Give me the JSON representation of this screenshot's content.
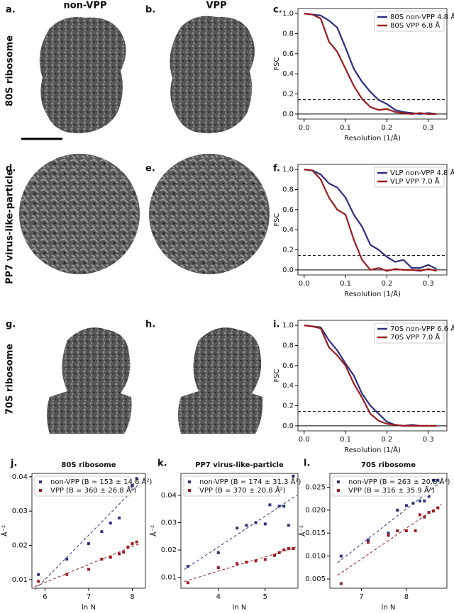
{
  "figure": {
    "panel_letters": [
      "a.",
      "b.",
      "c.",
      "d.",
      "e.",
      "f.",
      "g.",
      "h.",
      "i.",
      "j.",
      "k.",
      "l."
    ],
    "column_headers": [
      "non-VPP",
      "VPP"
    ],
    "row_labels": [
      "80S ribosome",
      "PP7 virus-like-particle",
      "70S ribosome"
    ]
  },
  "chart_data": [
    {
      "type": "line",
      "xlabel": "Resolution (1/Å)",
      "ylabel": "FSC",
      "legend": "upper right",
      "threshold": 0.143,
      "xlim": [
        -0.015,
        0.345
      ],
      "xticks": [
        {
          "value": 0,
          "label": "0.0"
        },
        0.1,
        0.2,
        0.3
      ],
      "ylim": [
        -0.05,
        1.05
      ],
      "yticks": [
        {
          "value": 0,
          "label": "0.0"
        },
        0.2,
        0.4,
        0.6,
        0.8,
        {
          "value": 1,
          "label": "1.0"
        }
      ],
      "x": [
        0,
        0.02,
        0.04,
        0.06,
        0.08,
        0.1,
        0.12,
        0.14,
        0.16,
        0.18,
        0.2,
        0.22,
        0.24,
        0.26,
        0.28,
        0.3,
        0.32
      ],
      "series": [
        {
          "name": "80S non-VPP 4.8 Å",
          "color": "#2b2f7e",
          "values": [
            1.0,
            0.99,
            0.98,
            0.93,
            0.86,
            0.66,
            0.45,
            0.32,
            0.22,
            0.14,
            0.1,
            0.04,
            0.02,
            0.01,
            0.0,
            0.01,
            0.0
          ]
        },
        {
          "name": "80S VPP 6.8 Å",
          "color": "#9b1b1e",
          "values": [
            1.0,
            0.99,
            0.95,
            0.72,
            0.62,
            0.45,
            0.28,
            0.15,
            0.07,
            0.04,
            0.05,
            0.02,
            0.01,
            0.0,
            0.01,
            0.0,
            0.0
          ]
        }
      ]
    },
    {
      "type": "line",
      "xlabel": "Resolution (1/Å)",
      "ylabel": "FSC",
      "legend": "upper right",
      "threshold": 0.143,
      "xlim": [
        -0.015,
        0.345
      ],
      "xticks": [
        {
          "value": 0,
          "label": "0.0"
        },
        0.1,
        0.2,
        0.3
      ],
      "ylim": [
        -0.05,
        1.05
      ],
      "yticks": [
        {
          "value": 0,
          "label": "0.0"
        },
        0.2,
        0.4,
        0.6,
        0.8,
        {
          "value": 1,
          "label": "1.0"
        }
      ],
      "x": [
        0,
        0.02,
        0.04,
        0.06,
        0.08,
        0.1,
        0.12,
        0.14,
        0.16,
        0.18,
        0.2,
        0.22,
        0.24,
        0.26,
        0.28,
        0.3,
        0.32
      ],
      "series": [
        {
          "name": "VLP non-VPP 4.8 Å",
          "color": "#2b2f7e",
          "values": [
            1.0,
            0.99,
            0.95,
            0.86,
            0.82,
            0.72,
            0.55,
            0.43,
            0.25,
            0.2,
            0.13,
            0.08,
            0.1,
            0.02,
            0.02,
            0.05,
            0.01
          ]
        },
        {
          "name": "VLP VPP 7.0 Å",
          "color": "#9b1b1e",
          "values": [
            1.0,
            0.99,
            0.9,
            0.72,
            0.6,
            0.55,
            0.3,
            0.1,
            0.0,
            0.02,
            -0.01,
            0.01,
            0.0,
            0.0,
            -0.01,
            0.01,
            -0.01
          ]
        }
      ]
    },
    {
      "type": "line",
      "xlabel": "Resolution (1/Å)",
      "ylabel": "FSC",
      "legend": "upper right",
      "threshold": 0.143,
      "xlim": [
        -0.015,
        0.345
      ],
      "xticks": [
        {
          "value": 0,
          "label": "0.0"
        },
        0.1,
        0.2,
        0.3
      ],
      "ylim": [
        -0.05,
        1.05
      ],
      "yticks": [
        {
          "value": 0,
          "label": "0.0"
        },
        0.2,
        0.4,
        0.6,
        0.8,
        {
          "value": 1,
          "label": "1.0"
        }
      ],
      "x": [
        0,
        0.02,
        0.04,
        0.06,
        0.08,
        0.1,
        0.12,
        0.14,
        0.16,
        0.18,
        0.2,
        0.22,
        0.24,
        0.26,
        0.28,
        0.3,
        0.32
      ],
      "series": [
        {
          "name": "70S non-VPP 6.6 Å",
          "color": "#2b2f7e",
          "values": [
            1.0,
            0.99,
            0.98,
            0.85,
            0.75,
            0.62,
            0.5,
            0.32,
            0.2,
            0.12,
            0.04,
            0.01,
            0.0,
            0.01,
            0.0,
            0.0,
            0.0
          ]
        },
        {
          "name": "70S VPP 7.0 Å",
          "color": "#9b1b1e",
          "values": [
            1.0,
            0.99,
            0.97,
            0.78,
            0.7,
            0.6,
            0.42,
            0.28,
            0.12,
            0.05,
            0.02,
            0.01,
            0.0,
            0.0,
            0.0,
            0.0,
            0.0
          ]
        }
      ]
    },
    {
      "type": "scatter",
      "title": "80S ribosome",
      "xlabel": "ln N",
      "ylabel": "Å⁻²",
      "legend": "upper left",
      "fit_line": true,
      "xlim": [
        5.7,
        8.3
      ],
      "xticks": [
        6,
        7,
        8
      ],
      "ylim": [
        0.0075,
        0.041
      ],
      "yticks": [
        0.01,
        0.02,
        0.03,
        0.04
      ],
      "series": [
        {
          "name": "non-VPP (B = 153 ± 14.6 Å²)",
          "color": "#2b2f7e",
          "x": [
            5.85,
            6.5,
            7.0,
            7.3,
            7.5,
            7.7,
            7.8,
            7.95,
            8.0,
            8.1
          ],
          "values": [
            0.0115,
            0.016,
            0.0205,
            0.024,
            0.0265,
            0.028,
            0.037,
            0.037,
            0.0375,
            0.0395
          ]
        },
        {
          "name": "VPP (B = 360 ± 26.8 Å²)",
          "color": "#9b1b1e",
          "x": [
            5.85,
            6.5,
            7.0,
            7.3,
            7.5,
            7.7,
            7.8,
            7.9,
            8.0,
            8.1
          ],
          "values": [
            0.0095,
            0.0115,
            0.013,
            0.016,
            0.0165,
            0.0175,
            0.018,
            0.0195,
            0.0205,
            0.021
          ]
        }
      ]
    },
    {
      "type": "scatter",
      "title": "PP7 virus-like-particle",
      "xlabel": "ln N",
      "ylabel": "Å⁻²",
      "legend": "upper left",
      "fit_line": true,
      "xlim": [
        3.2,
        5.7
      ],
      "xticks": [
        4,
        5
      ],
      "ylim": [
        0.006,
        0.048
      ],
      "yticks": [
        0.01,
        0.02,
        0.03,
        0.04
      ],
      "series": [
        {
          "name": "non-VPP (B = 174 ± 31.3 Å²)",
          "color": "#2b2f7e",
          "x": [
            3.35,
            4.0,
            4.4,
            4.6,
            4.8,
            5.0,
            5.1,
            5.3,
            5.4,
            5.5,
            5.6
          ],
          "values": [
            0.014,
            0.019,
            0.028,
            0.029,
            0.03,
            0.0295,
            0.0365,
            0.036,
            0.036,
            0.029,
            0.047
          ]
        },
        {
          "name": "VPP (B = 370 ± 20.8 Å²)",
          "color": "#9b1b1e",
          "x": [
            3.35,
            4.0,
            4.4,
            4.6,
            4.8,
            5.0,
            5.2,
            5.3,
            5.4,
            5.5,
            5.6
          ],
          "values": [
            0.008,
            0.0135,
            0.015,
            0.0155,
            0.016,
            0.0165,
            0.018,
            0.019,
            0.02,
            0.0205,
            0.0205
          ]
        }
      ]
    },
    {
      "type": "scatter",
      "title": "70S ribosome",
      "xlabel": "ln N",
      "ylabel": "Å⁻²",
      "legend": "upper left",
      "fit_line": true,
      "xlim": [
        6.3,
        8.9
      ],
      "xticks": [
        7,
        8
      ],
      "ylim": [
        0.003,
        0.028
      ],
      "yticks": [
        0.005,
        {
          "value": 0.01,
          "label": "0.010"
        },
        0.015,
        {
          "value": 0.02,
          "label": "0.020"
        },
        0.025
      ],
      "series": [
        {
          "name": "non-VPP (B = 263 ± 20.8 Å²)",
          "color": "#2b2f7e",
          "x": [
            6.55,
            7.15,
            7.6,
            7.8,
            8.0,
            8.15,
            8.3,
            8.4,
            8.5,
            8.6,
            8.7
          ],
          "values": [
            0.01,
            0.0135,
            0.015,
            0.02,
            0.021,
            0.0215,
            0.022,
            0.022,
            0.023,
            0.0265,
            0.0265
          ]
        },
        {
          "name": "VPP (B = 316 ± 35.9 Å²)",
          "color": "#9b1b1e",
          "x": [
            6.55,
            7.15,
            7.6,
            7.8,
            8.0,
            8.2,
            8.3,
            8.4,
            8.5,
            8.6,
            8.7
          ],
          "values": [
            0.004,
            0.013,
            0.0145,
            0.0155,
            0.0155,
            0.0155,
            0.019,
            0.0185,
            0.0195,
            0.0198,
            0.0205
          ]
        }
      ]
    }
  ]
}
